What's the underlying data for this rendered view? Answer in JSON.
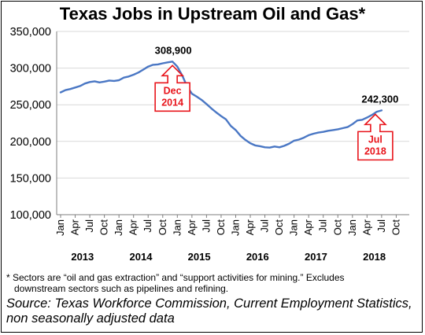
{
  "title": "Texas Jobs in Upstream Oil and Gas*",
  "note": {
    "line1": "* Sectors are “oil and gas extraction” and “support activities for mining.” Excludes",
    "line2": "downstream sectors such as pipelines and refining."
  },
  "source": {
    "line1": "Source: Texas Workforce Commission, Current Employment Statistics,",
    "line2": "non seasonally adjusted data"
  },
  "colors": {
    "line": "#4a77c4",
    "callout": "#e8141b",
    "grid": "#d9d9d9"
  },
  "chart_data": {
    "type": "line",
    "title": "Texas Jobs in Upstream Oil and Gas*",
    "ylim": [
      100000,
      350000
    ],
    "y_ticks": [
      "350,000",
      "300,000",
      "250,000",
      "200,000",
      "150,000",
      "100,000"
    ],
    "y_tick_values": [
      350000,
      300000,
      250000,
      200000,
      150000,
      100000
    ],
    "x_tick_labels": [
      "Jan",
      "Apr",
      "Jul",
      "Oct",
      "Jan",
      "Apr",
      "Jul",
      "Oct",
      "Jan",
      "Apr",
      "Jul",
      "Oct",
      "Jan",
      "Apr",
      "Jul",
      "Oct",
      "Jan",
      "Apr",
      "Jul",
      "Oct",
      "Jan",
      "Apr",
      "Jul",
      "Oct"
    ],
    "x_years": [
      "2013",
      "2014",
      "2015",
      "2016",
      "2017",
      "2018"
    ],
    "grid": "horizontal",
    "series": [
      {
        "x": [
          "2013-01",
          "2013-02",
          "2013-03",
          "2013-04",
          "2013-05",
          "2013-06",
          "2013-07",
          "2013-08",
          "2013-09",
          "2013-10",
          "2013-11",
          "2013-12",
          "2014-01",
          "2014-02",
          "2014-03",
          "2014-04",
          "2014-05",
          "2014-06",
          "2014-07",
          "2014-08",
          "2014-09",
          "2014-10",
          "2014-11",
          "2014-12",
          "2015-01",
          "2015-02",
          "2015-03",
          "2015-04",
          "2015-05",
          "2015-06",
          "2015-07",
          "2015-08",
          "2015-09",
          "2015-10",
          "2015-11",
          "2015-12",
          "2016-01",
          "2016-02",
          "2016-03",
          "2016-04",
          "2016-05",
          "2016-06",
          "2016-07",
          "2016-08",
          "2016-09",
          "2016-10",
          "2016-11",
          "2016-12",
          "2017-01",
          "2017-02",
          "2017-03",
          "2017-04",
          "2017-05",
          "2017-06",
          "2017-07",
          "2017-08",
          "2017-09",
          "2017-10",
          "2017-11",
          "2017-12",
          "2018-01",
          "2018-02",
          "2018-03",
          "2018-04",
          "2018-05",
          "2018-06",
          "2018-07"
        ],
        "values": [
          266800,
          270000,
          271500,
          273500,
          275500,
          279000,
          281000,
          282000,
          280500,
          281500,
          283000,
          282500,
          283500,
          287000,
          288500,
          291000,
          294000,
          298000,
          302000,
          304500,
          305000,
          306500,
          307800,
          308900,
          302000,
          290000,
          275000,
          265000,
          261000,
          256500,
          251000,
          245000,
          239500,
          234500,
          230000,
          221000,
          215500,
          207500,
          202000,
          197500,
          194500,
          193500,
          192000,
          191500,
          193000,
          192000,
          194000,
          197000,
          201000,
          202500,
          205000,
          208500,
          210500,
          212000,
          213000,
          214500,
          215500,
          216500,
          218000,
          219500,
          223500,
          228500,
          229500,
          232500,
          236000,
          240500,
          242300
        ]
      }
    ],
    "annotations": [
      {
        "x": "2014-12",
        "value_label": "308,900",
        "callout": [
          "Dec",
          "2014"
        ]
      },
      {
        "x": "2018-07",
        "value_label": "242,300",
        "callout": [
          "Jul",
          "2018"
        ]
      }
    ]
  }
}
